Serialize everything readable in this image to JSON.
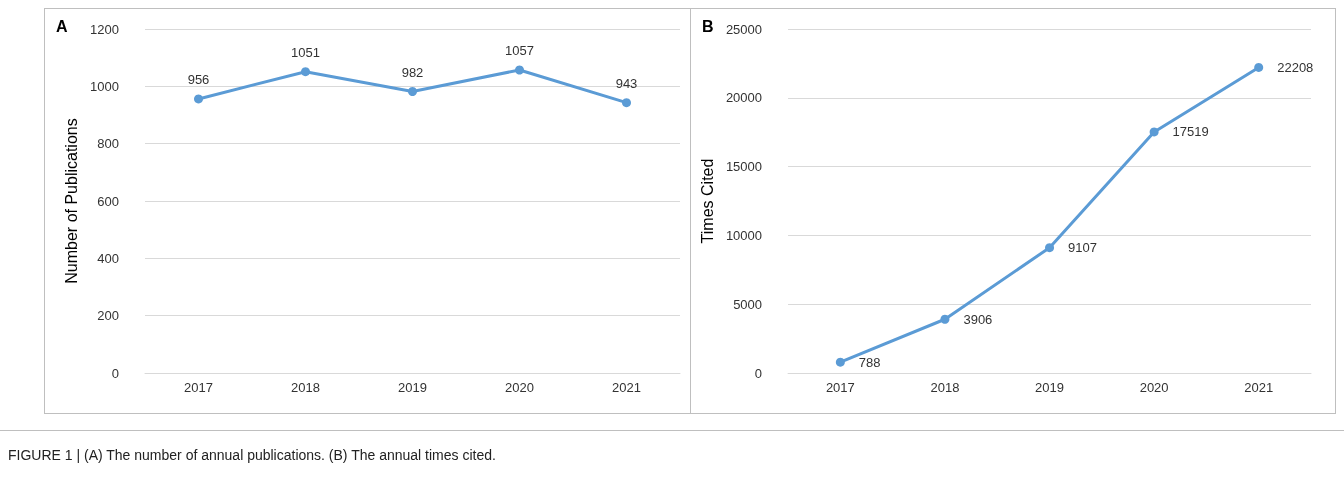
{
  "chart_data": [
    {
      "type": "line",
      "title": "A",
      "ylabel": "Number of Publications",
      "categories": [
        "2017",
        "2018",
        "2019",
        "2020",
        "2021"
      ],
      "series": [
        {
          "color": "#5b9bd5",
          "values": [
            956,
            1051,
            982,
            1057,
            943
          ]
        }
      ],
      "ylim": [
        0,
        1200
      ],
      "yticks": [
        0,
        200,
        400,
        600,
        800,
        1000,
        1200
      ],
      "grid": "y",
      "marker": "circle",
      "data_labels": true,
      "annotations": [
        "FIGURE 1 | (A) The number of annual publications. (B) The annual times cited."
      ]
    },
    {
      "type": "line",
      "title": "B",
      "ylabel": "Times Cited",
      "categories": [
        "2017",
        "2018",
        "2019",
        "2020",
        "2021"
      ],
      "series": [
        {
          "color": "#5b9bd5",
          "values": [
            788,
            3906,
            9107,
            17519,
            22208
          ]
        }
      ],
      "ylim": [
        0,
        25000
      ],
      "yticks": [
        0,
        5000,
        10000,
        15000,
        20000,
        25000
      ],
      "grid": "y",
      "marker": "circle",
      "data_labels": true
    }
  ]
}
